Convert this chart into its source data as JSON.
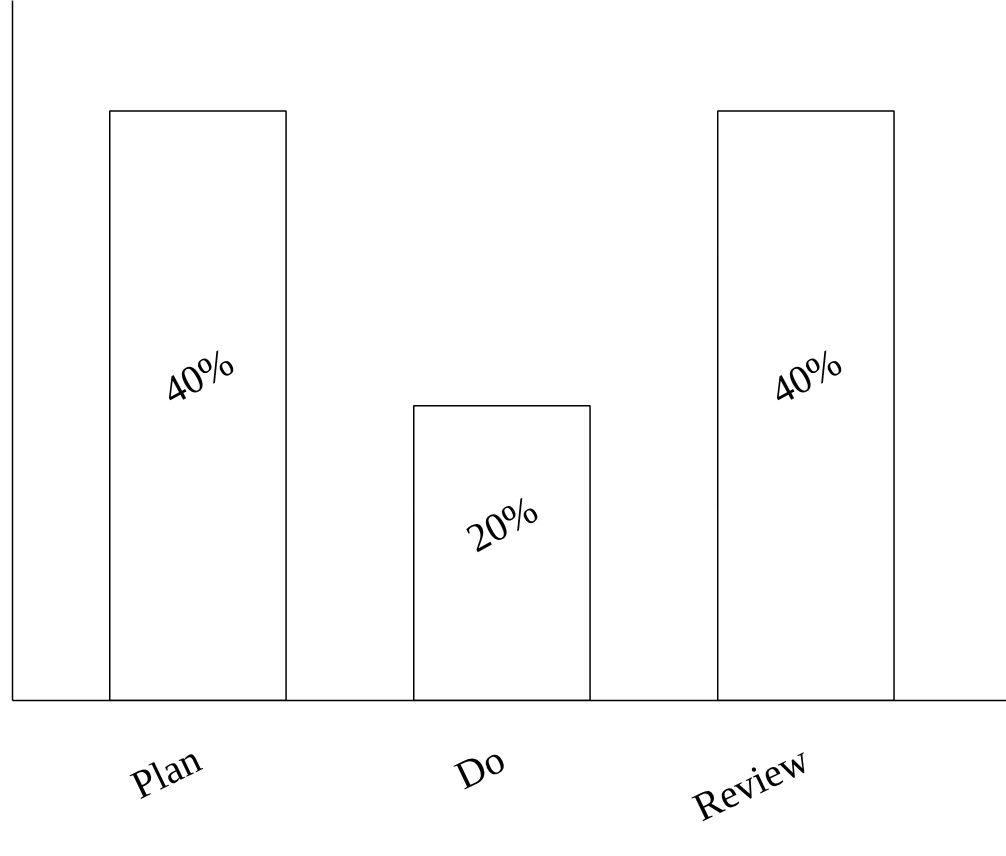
{
  "chart_data": {
    "type": "bar",
    "categories": [
      "Plan",
      "Do",
      "Review"
    ],
    "values": [
      40,
      20,
      40
    ],
    "color": "#ffffff",
    "value_labels": [
      "40%",
      "20%",
      "40%"
    ],
    "ylim": [
      0,
      47.5
    ],
    "grid": false
  }
}
